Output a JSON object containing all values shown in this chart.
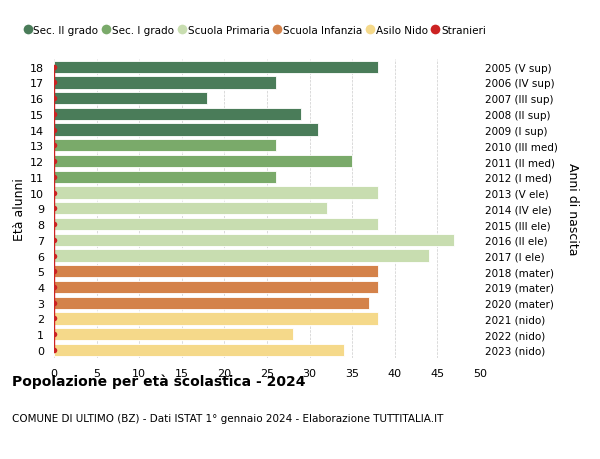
{
  "ages": [
    18,
    17,
    16,
    15,
    14,
    13,
    12,
    11,
    10,
    9,
    8,
    7,
    6,
    5,
    4,
    3,
    2,
    1,
    0
  ],
  "years": [
    "2005 (V sup)",
    "2006 (IV sup)",
    "2007 (III sup)",
    "2008 (II sup)",
    "2009 (I sup)",
    "2010 (III med)",
    "2011 (II med)",
    "2012 (I med)",
    "2013 (V ele)",
    "2014 (IV ele)",
    "2015 (III ele)",
    "2016 (II ele)",
    "2017 (I ele)",
    "2018 (mater)",
    "2019 (mater)",
    "2020 (mater)",
    "2021 (nido)",
    "2022 (nido)",
    "2023 (nido)"
  ],
  "values": [
    38,
    26,
    18,
    29,
    31,
    26,
    35,
    26,
    38,
    32,
    38,
    47,
    44,
    38,
    38,
    37,
    38,
    28,
    34
  ],
  "bar_colors": [
    "#4a7c59",
    "#4a7c59",
    "#4a7c59",
    "#4a7c59",
    "#4a7c59",
    "#7aaa6a",
    "#7aaa6a",
    "#7aaa6a",
    "#c8ddb0",
    "#c8ddb0",
    "#c8ddb0",
    "#c8ddb0",
    "#c8ddb0",
    "#d4824a",
    "#d4824a",
    "#d4824a",
    "#f5d98a",
    "#f5d98a",
    "#f5d98a"
  ],
  "legend_labels": [
    "Sec. II grado",
    "Sec. I grado",
    "Scuola Primaria",
    "Scuola Infanzia",
    "Asilo Nido",
    "Stranieri"
  ],
  "legend_colors": [
    "#4a7c59",
    "#7aaa6a",
    "#c8ddb0",
    "#d4824a",
    "#f5d98a",
    "#cc2222"
  ],
  "title": "Popolazione per età scolastica - 2024",
  "subtitle": "COMUNE DI ULTIMO (BZ) - Dati ISTAT 1° gennaio 2024 - Elaborazione TUTTITALIA.IT",
  "ylabel_left": "Età alunni",
  "ylabel_right": "Anni di nascita",
  "xlim": [
    0,
    50
  ],
  "xticks": [
    0,
    5,
    10,
    15,
    20,
    25,
    30,
    35,
    40,
    45,
    50
  ],
  "background_color": "#ffffff",
  "bar_height": 0.78,
  "stranieri_color": "#cc2222"
}
